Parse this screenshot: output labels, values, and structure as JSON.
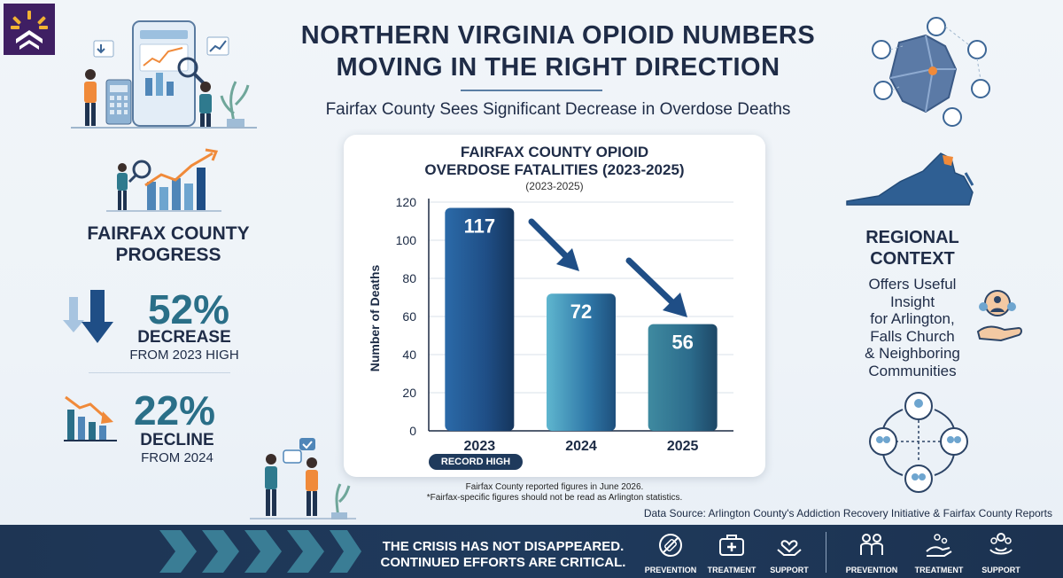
{
  "header": {
    "title_line1": "NORTHERN VIRGINIA OPIOID NUMBERS",
    "title_line2": "MOVING IN THE RIGHT DIRECTION",
    "subtitle": "Fairfax County Sees Significant Decrease in Overdose Deaths"
  },
  "left": {
    "heading_line1": "FAIRFAX COUNTY",
    "heading_line2": "PROGRESS",
    "stat1": {
      "pct": "52%",
      "word": "DECREASE",
      "sub": "FROM 2023 HIGH"
    },
    "stat2": {
      "pct": "22%",
      "word": "DECLINE",
      "sub": "FROM 2024"
    }
  },
  "right": {
    "heading_line1": "REGIONAL",
    "heading_line2": "CONTEXT",
    "text_lines": [
      "Offers Useful",
      "Insight",
      "for Arlington,",
      "Falls Church",
      "& Neighboring",
      "Communities"
    ]
  },
  "chart_data": {
    "type": "bar",
    "title_line1": "FAIRFAX COUNTY OPIOID",
    "title_line2": "OVERDOSE FATALITIES (2023-2025)",
    "subtitle": "(2023-2025)",
    "ylabel": "Number of Deaths",
    "xlabel": "",
    "categories": [
      "2023",
      "2024",
      "2025"
    ],
    "values": [
      117,
      72,
      56
    ],
    "data_labels": [
      "117",
      "72",
      "56"
    ],
    "yticks": [
      0,
      20,
      40,
      60,
      80,
      100,
      120
    ],
    "ylim": [
      0,
      120
    ],
    "grid": true,
    "annotation": "RECORD HIGH",
    "colors": [
      "#1f4e86",
      "#2f78a8",
      "#2c6c8c"
    ]
  },
  "notes": {
    "footnote_line1": "Fairfax County reported figures in June 2026.",
    "footnote_line2": "*Fairfax-specific figures should not be read as Arlington statistics.",
    "source": "Data Source: Arlington County's Addiction Recovery Initiative & Fairfax County Reports"
  },
  "banner": {
    "line1": "THE CRISIS HAS NOT DISAPPEARED.",
    "line2": "CONTINUED EFFORTS ARE CRITICAL.",
    "labels": [
      "PREVENTION",
      "TREATMENT",
      "SUPPORT",
      "PREVENTION",
      "TREATMENT",
      "SUPPORT"
    ]
  },
  "icons": {
    "logo": "sun-chevron-logo-icon",
    "stat1_icon": "down-arrows-icon",
    "stat2_icon": "declining-bar-chart-icon",
    "banner_icons": [
      "prevention-icon",
      "treatment-icon",
      "support-icon",
      "prevention-people-icon",
      "treatment-hand-icon",
      "support-hands-icon"
    ]
  }
}
